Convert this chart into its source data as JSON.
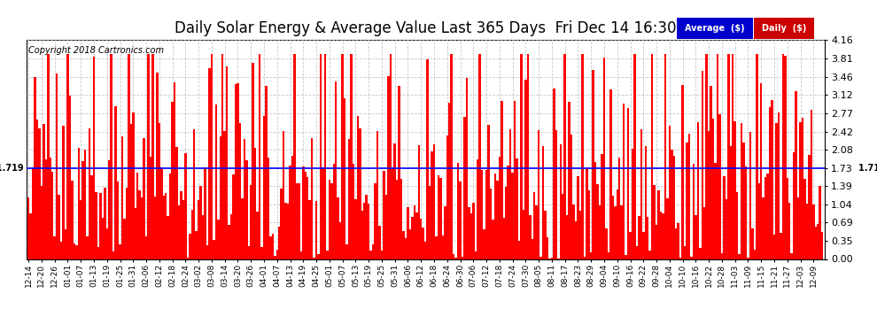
{
  "title": "Daily Solar Energy & Average Value Last 365 Days  Fri Dec 14 16:30",
  "copyright": "Copyright 2018 Cartronics.com",
  "average_value": 1.719,
  "ylim": [
    0.0,
    4.16
  ],
  "yticks": [
    0.0,
    0.35,
    0.69,
    1.04,
    1.39,
    1.73,
    2.08,
    2.42,
    2.77,
    3.12,
    3.46,
    3.81,
    4.16
  ],
  "bar_color": "#FF0000",
  "avg_line_color": "#0000FF",
  "background_color": "#FFFFFF",
  "grid_color": "#BBBBBB",
  "title_fontsize": 12,
  "legend_avg_bg": "#0000CC",
  "legend_daily_bg": "#CC0000",
  "tick_labels": [
    "12-14",
    "12-20",
    "12-26",
    "01-01",
    "01-07",
    "01-13",
    "01-19",
    "01-25",
    "01-31",
    "02-06",
    "02-12",
    "02-18",
    "02-24",
    "03-02",
    "03-08",
    "03-14",
    "03-20",
    "03-26",
    "04-01",
    "04-07",
    "04-13",
    "04-19",
    "04-25",
    "05-01",
    "05-07",
    "05-13",
    "05-19",
    "05-25",
    "05-31",
    "06-06",
    "06-12",
    "06-18",
    "06-24",
    "06-30",
    "07-06",
    "07-12",
    "07-18",
    "07-24",
    "07-30",
    "08-05",
    "08-11",
    "08-17",
    "08-23",
    "08-29",
    "09-04",
    "09-10",
    "09-16",
    "09-22",
    "09-28",
    "10-04",
    "10-10",
    "10-16",
    "10-22",
    "10-28",
    "11-03",
    "11-09",
    "11-15",
    "11-21",
    "11-27",
    "12-03",
    "12-09"
  ],
  "n_days": 365,
  "random_seed": 42
}
